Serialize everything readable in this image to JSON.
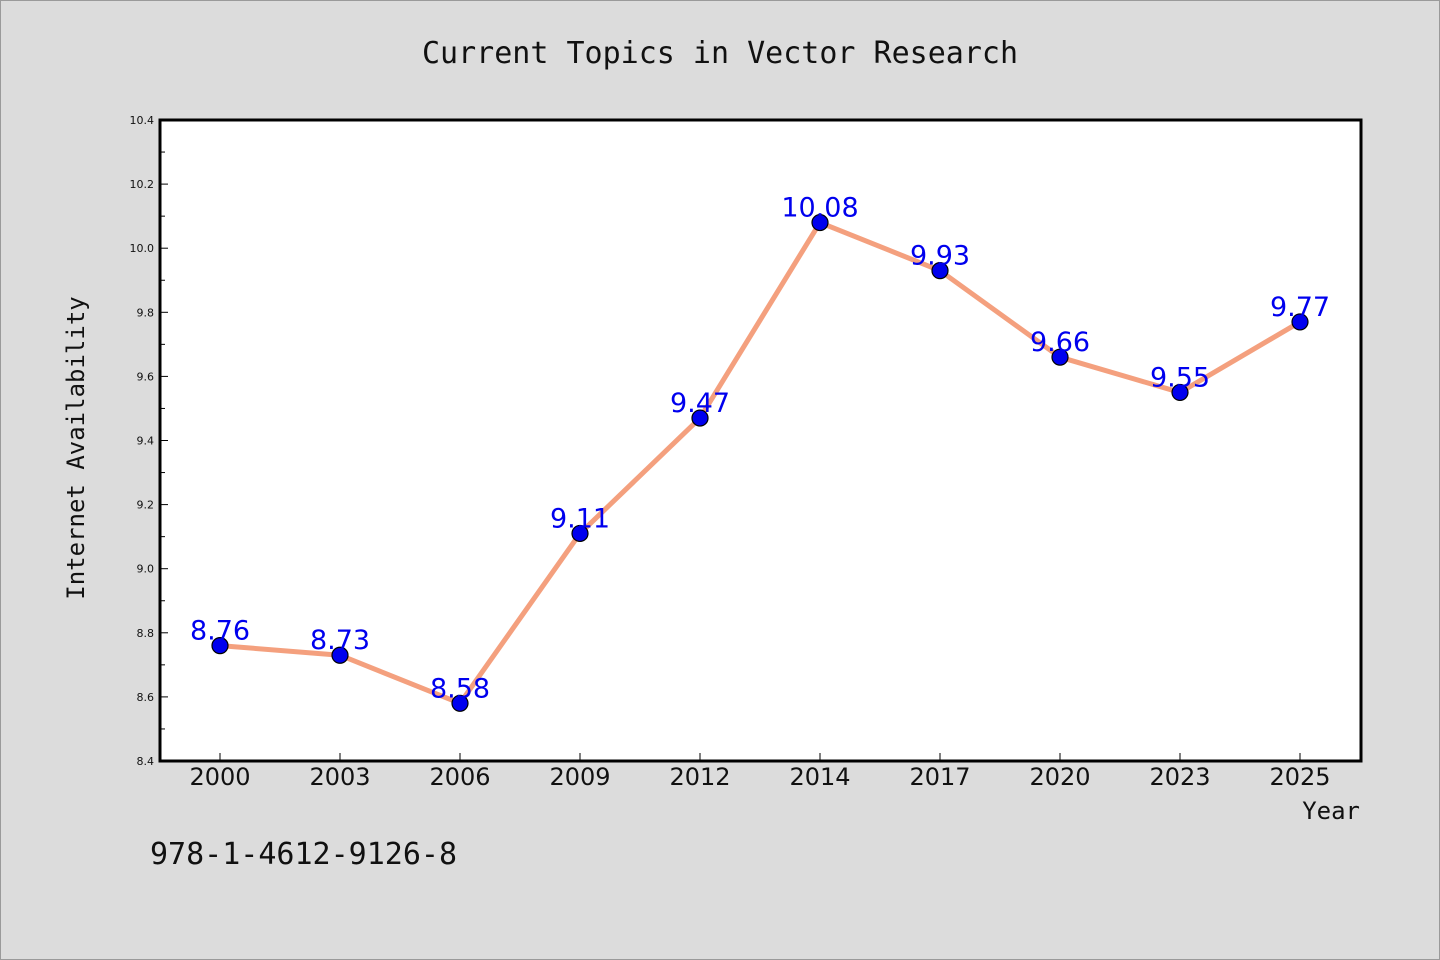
{
  "chart_data": {
    "type": "line",
    "title": "Current Topics in Vector Research",
    "xlabel": "Year",
    "ylabel": "Internet Availability",
    "categories": [
      "2000",
      "2003",
      "2006",
      "2009",
      "2012",
      "2014",
      "2017",
      "2020",
      "2023",
      "2025"
    ],
    "values": [
      8.76,
      8.73,
      8.58,
      9.11,
      9.47,
      10.08,
      9.93,
      9.66,
      9.55,
      9.77
    ],
    "data_labels": [
      "8.76",
      "8.73",
      "8.58",
      "9.11",
      "9.47",
      "10.08",
      "9.93",
      "9.66",
      "9.55",
      "9.77"
    ],
    "ylim": [
      8.4,
      10.4
    ],
    "yticks": [
      "8.4",
      "8.6",
      "8.8",
      "9.0",
      "9.2",
      "9.4",
      "9.6",
      "9.8",
      "10.0",
      "10.2",
      "10.4"
    ],
    "grid": false,
    "legend": "none",
    "colors": {
      "line": "#f4a07e",
      "marker": "#0000ee",
      "data_label": "#0000ee",
      "plot_bg": "#ffffff",
      "page_bg": "#dcdcdc"
    }
  },
  "footer": {
    "isbn": "978-1-4612-9126-8"
  }
}
